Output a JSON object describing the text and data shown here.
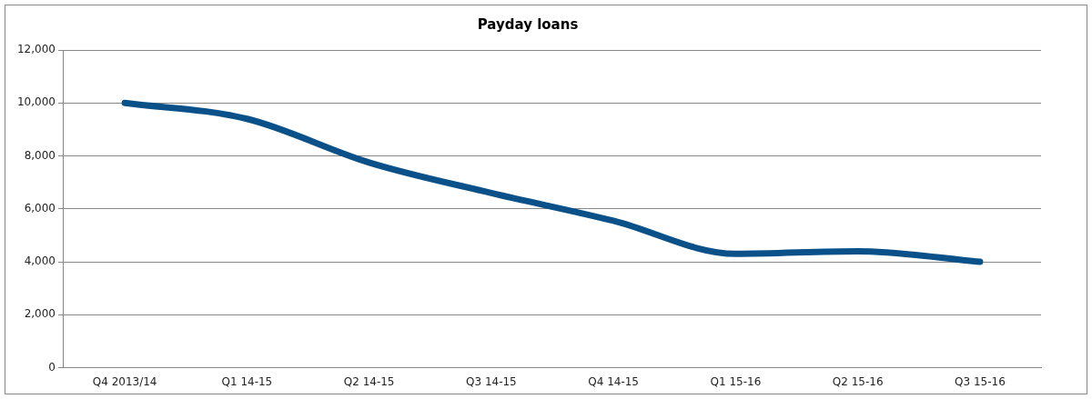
{
  "chart_data": {
    "type": "line",
    "title": "Payday loans",
    "categories": [
      "Q4 2013/14",
      "Q1 14-15",
      "Q2 14-15",
      "Q3 14-15",
      "Q4 14-15",
      "Q1 15-16",
      "Q2 15-16",
      "Q3 15-16"
    ],
    "series": [
      {
        "color": "#0b5189",
        "values": [
          10000,
          9400,
          7750,
          6600,
          5550,
          4300,
          4400,
          4000
        ]
      }
    ],
    "ylim": [
      0,
      12000
    ],
    "yticks": [
      0,
      {
        "value": 2000,
        "label": "2,000"
      },
      {
        "value": 4000,
        "label": "4,000"
      },
      {
        "value": 6000,
        "label": "6,000"
      },
      {
        "value": 8000,
        "label": "8,000"
      },
      {
        "value": 10000,
        "label": "10,000"
      },
      {
        "value": 12000,
        "label": "12,000"
      }
    ],
    "grid": "y",
    "legend": false,
    "marker": "none",
    "line_style": "solid"
  }
}
